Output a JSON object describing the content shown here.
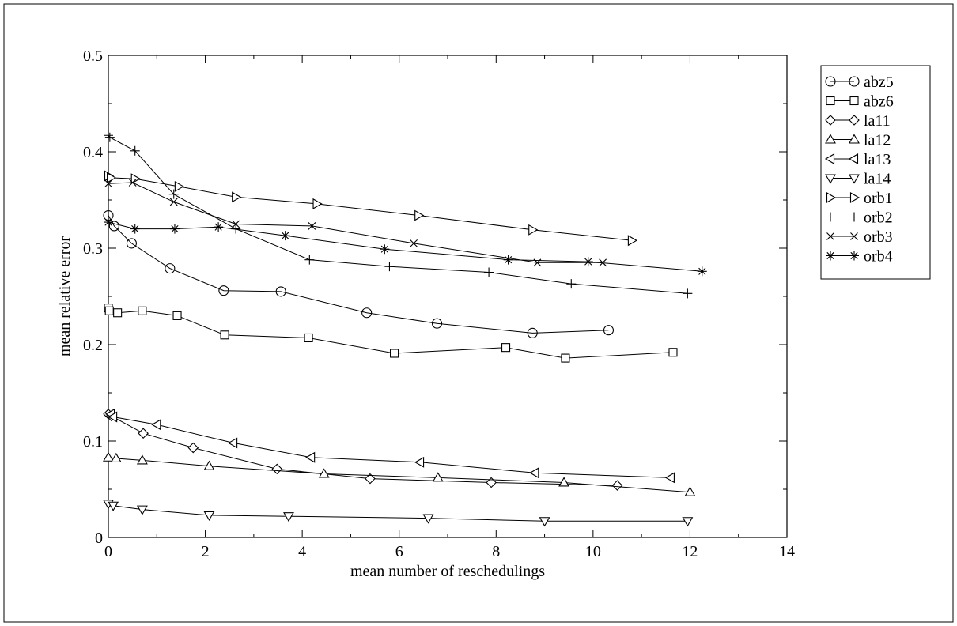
{
  "chart_data": {
    "type": "line",
    "title": "",
    "xlabel": "mean number of reschedulings",
    "ylabel": "mean relative error",
    "xlim": [
      0,
      14
    ],
    "ylim": [
      0,
      0.5
    ],
    "xticks": [
      "0",
      "2",
      "4",
      "6",
      "8",
      "10",
      "12",
      "14"
    ],
    "yticks": [
      "0",
      "0.1",
      "0.2",
      "0.3",
      "0.4",
      "0.5"
    ],
    "grid": false,
    "legend_position": "right",
    "series": [
      {
        "name": "abz5",
        "marker": "circle",
        "x": [
          0,
          0.12,
          0.48,
          1.27,
          2.38,
          3.56,
          5.33,
          6.78,
          8.75,
          10.32
        ],
        "y": [
          0.334,
          0.323,
          0.305,
          0.279,
          0.256,
          0.255,
          0.233,
          0.222,
          0.212,
          0.215
        ]
      },
      {
        "name": "abz6",
        "marker": "square",
        "x": [
          0,
          0.02,
          0.19,
          0.7,
          1.42,
          2.4,
          4.13,
          5.9,
          8.2,
          9.43,
          11.65
        ],
        "y": [
          0.238,
          0.235,
          0.233,
          0.235,
          0.23,
          0.21,
          0.207,
          0.191,
          0.197,
          0.186,
          0.192
        ]
      },
      {
        "name": "la11",
        "marker": "diamond",
        "x": [
          0,
          0.06,
          0.72,
          1.75,
          3.48,
          5.4,
          7.9,
          10.5
        ],
        "y": [
          0.128,
          0.126,
          0.108,
          0.093,
          0.071,
          0.061,
          0.057,
          0.054
        ]
      },
      {
        "name": "la12",
        "marker": "triangle-up",
        "x": [
          0,
          0.16,
          0.7,
          2.08,
          4.45,
          6.8,
          9.4,
          12.0
        ],
        "y": [
          0.083,
          0.082,
          0.08,
          0.074,
          0.066,
          0.062,
          0.057,
          0.047
        ]
      },
      {
        "name": "la13",
        "marker": "triangle-left",
        "x": [
          0.05,
          0.1,
          1.0,
          2.58,
          4.18,
          6.43,
          8.8,
          11.6
        ],
        "y": [
          0.128,
          0.125,
          0.117,
          0.098,
          0.083,
          0.078,
          0.067,
          0.062
        ]
      },
      {
        "name": "la14",
        "marker": "triangle-down",
        "x": [
          0,
          0.1,
          0.7,
          2.08,
          3.72,
          6.6,
          9.0,
          11.95
        ],
        "y": [
          0.035,
          0.033,
          0.029,
          0.023,
          0.022,
          0.02,
          0.017,
          0.017
        ]
      },
      {
        "name": "orb1",
        "marker": "triangle-right",
        "x": [
          0,
          0.05,
          0.55,
          1.45,
          2.63,
          4.3,
          6.4,
          8.75,
          10.8
        ],
        "y": [
          0.375,
          0.373,
          0.372,
          0.364,
          0.353,
          0.346,
          0.334,
          0.319,
          0.308
        ]
      },
      {
        "name": "orb2",
        "marker": "plus",
        "x": [
          0,
          0.03,
          0.55,
          1.35,
          2.63,
          4.15,
          5.8,
          7.85,
          9.55,
          11.95
        ],
        "y": [
          0.417,
          0.415,
          0.401,
          0.356,
          0.32,
          0.288,
          0.281,
          0.275,
          0.263,
          0.253
        ]
      },
      {
        "name": "orb3",
        "marker": "x",
        "x": [
          0,
          0.5,
          1.35,
          2.63,
          4.2,
          6.3,
          8.85,
          10.2
        ],
        "y": [
          0.367,
          0.368,
          0.348,
          0.325,
          0.323,
          0.305,
          0.285,
          0.285
        ]
      },
      {
        "name": "orb4",
        "marker": "star",
        "x": [
          0,
          0.55,
          1.37,
          2.27,
          3.65,
          5.7,
          8.25,
          9.9,
          12.25
        ],
        "y": [
          0.327,
          0.32,
          0.32,
          0.322,
          0.313,
          0.299,
          0.288,
          0.286,
          0.276
        ]
      }
    ]
  }
}
